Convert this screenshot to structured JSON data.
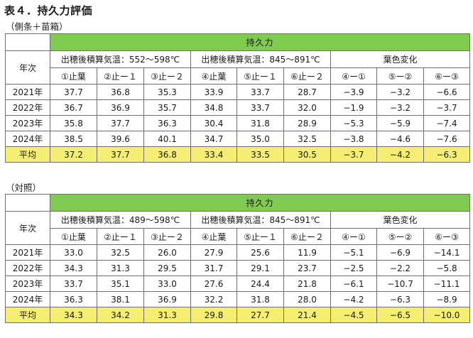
{
  "title": "表４．持久力評価",
  "tables": [
    {
      "caption": "（側条＋苗箱）",
      "super_header": "持久力",
      "row_header": "年次",
      "group_headers": [
        "出穂後積算気温：552〜598℃",
        "出穂後積算気温：845〜891℃",
        "葉色変化"
      ],
      "sub_headers": [
        "①止葉",
        "②止ー１",
        "③止ー２",
        "④止葉",
        "⑤止ー１",
        "⑥止ー２",
        "④ー①",
        "⑤ー②",
        "⑥ー③"
      ],
      "rows": [
        {
          "label": "2021年",
          "values": [
            "37.7",
            "36.8",
            "35.3",
            "33.9",
            "33.7",
            "28.7",
            "−3.9",
            "−3.2",
            "−6.6"
          ]
        },
        {
          "label": "2022年",
          "values": [
            "36.7",
            "36.9",
            "35.7",
            "34.8",
            "33.7",
            "32.0",
            "−1.9",
            "−3.2",
            "−3.7"
          ]
        },
        {
          "label": "2023年",
          "values": [
            "35.8",
            "37.7",
            "36.3",
            "30.4",
            "31.8",
            "28.9",
            "−5.3",
            "−5.9",
            "−7.4"
          ]
        },
        {
          "label": "2024年",
          "values": [
            "38.5",
            "39.6",
            "40.1",
            "34.7",
            "35.0",
            "32.5",
            "−3.8",
            "−4.6",
            "−7.6"
          ]
        }
      ],
      "average": {
        "label": "平均",
        "values": [
          "37.2",
          "37.7",
          "36.8",
          "33.4",
          "33.5",
          "30.5",
          "−3.7",
          "−4.2",
          "−6.3"
        ]
      }
    },
    {
      "caption": "（対照）",
      "super_header": "持久力",
      "row_header": "年次",
      "group_headers": [
        "出穂後積算気温：489〜598℃",
        "出穂後積算気温：845〜891℃",
        "葉色変化"
      ],
      "sub_headers": [
        "①止葉",
        "②止ー１",
        "③止ー２",
        "④止葉",
        "⑤止ー１",
        "⑥止ー２",
        "④ー①",
        "⑤ー②",
        "⑥ー③"
      ],
      "rows": [
        {
          "label": "2021年",
          "values": [
            "33.0",
            "32.5",
            "26.0",
            "27.9",
            "25.6",
            "11.9",
            "−5.1",
            "−6.9",
            "−14.1"
          ]
        },
        {
          "label": "2022年",
          "values": [
            "34.3",
            "31.3",
            "29.5",
            "31.7",
            "29.1",
            "23.7",
            "−2.5",
            "−2.2",
            "−5.8"
          ]
        },
        {
          "label": "2023年",
          "values": [
            "33.7",
            "35.1",
            "33.0",
            "27.6",
            "24.4",
            "21.8",
            "−6.1",
            "−10.7",
            "−11.1"
          ]
        },
        {
          "label": "2024年",
          "values": [
            "36.3",
            "38.1",
            "36.9",
            "32.2",
            "31.8",
            "28.0",
            "−4.2",
            "−6.3",
            "−8.9"
          ]
        }
      ],
      "average": {
        "label": "平均",
        "values": [
          "34.3",
          "34.2",
          "31.3",
          "29.8",
          "27.7",
          "21.4",
          "−4.5",
          "−6.5",
          "−10.0"
        ]
      }
    }
  ],
  "colors": {
    "header_green": "#7ecb4f",
    "average_yellow": "#f4ef72",
    "border": "#6e6e6e"
  }
}
